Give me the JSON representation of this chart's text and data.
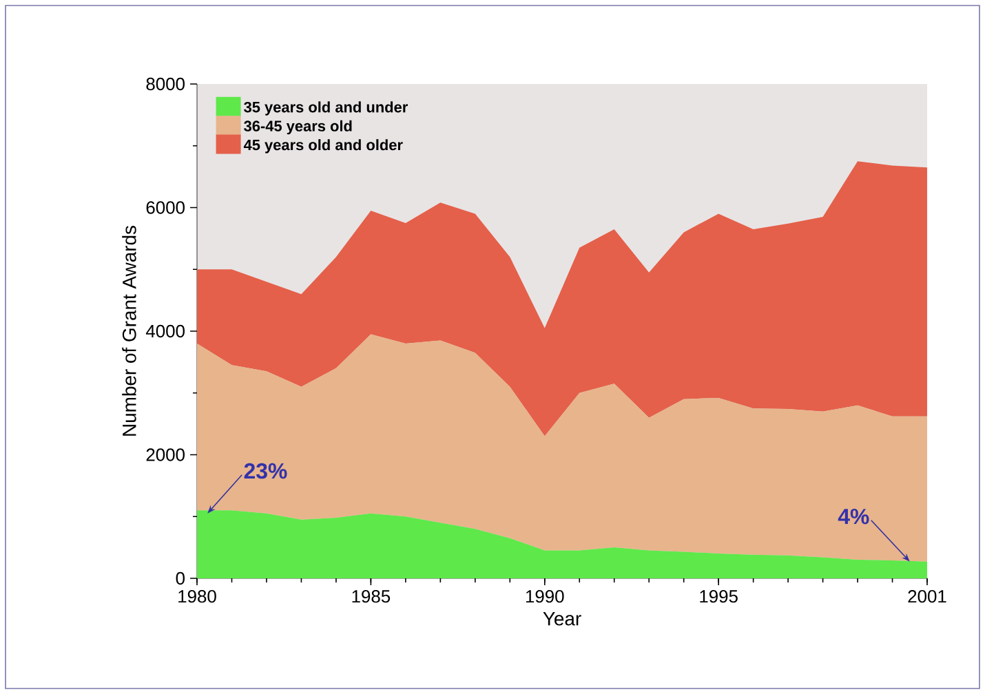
{
  "chart_data": {
    "type": "area",
    "stacked": true,
    "xlabel": "Year",
    "ylabel": "Number of Grant Awards",
    "x": [
      1980,
      1981,
      1982,
      1983,
      1984,
      1985,
      1986,
      1987,
      1988,
      1989,
      1990,
      1991,
      1992,
      1993,
      1994,
      1995,
      1996,
      1997,
      1998,
      1999,
      2000,
      2001
    ],
    "series": [
      {
        "name": "35 years old and under",
        "color": "#5ee84a",
        "values": [
          1100,
          1100,
          1050,
          950,
          980,
          1050,
          1000,
          900,
          800,
          650,
          450,
          450,
          500,
          450,
          430,
          400,
          380,
          370,
          340,
          300,
          290,
          270
        ]
      },
      {
        "name": "36-45 years old",
        "color": "#e8b48c",
        "values": [
          2700,
          2350,
          2300,
          2150,
          2420,
          2900,
          2800,
          2950,
          2850,
          2450,
          1850,
          2550,
          2650,
          2150,
          2470,
          2520,
          2370,
          2370,
          2360,
          2500,
          2330,
          2350
        ]
      },
      {
        "name": "45 years old and older",
        "color": "#e4604a",
        "values": [
          1200,
          1550,
          1450,
          1500,
          1800,
          2000,
          1950,
          2230,
          2250,
          2100,
          1750,
          2350,
          2500,
          2350,
          2700,
          2980,
          2900,
          3000,
          3150,
          3950,
          4060,
          4030
        ]
      }
    ],
    "xlim": [
      1980,
      2001
    ],
    "xticks": [
      1980,
      1985,
      1990,
      1995,
      2001
    ],
    "ylim": [
      0,
      8000
    ],
    "yticks": [
      0,
      2000,
      4000,
      6000,
      8000
    ],
    "legend": "top left",
    "annotations": [
      {
        "text": "23%",
        "x": 1980.3,
        "y": 1050
      },
      {
        "text": "4%",
        "x": 2000.5,
        "y": 270
      }
    ]
  }
}
